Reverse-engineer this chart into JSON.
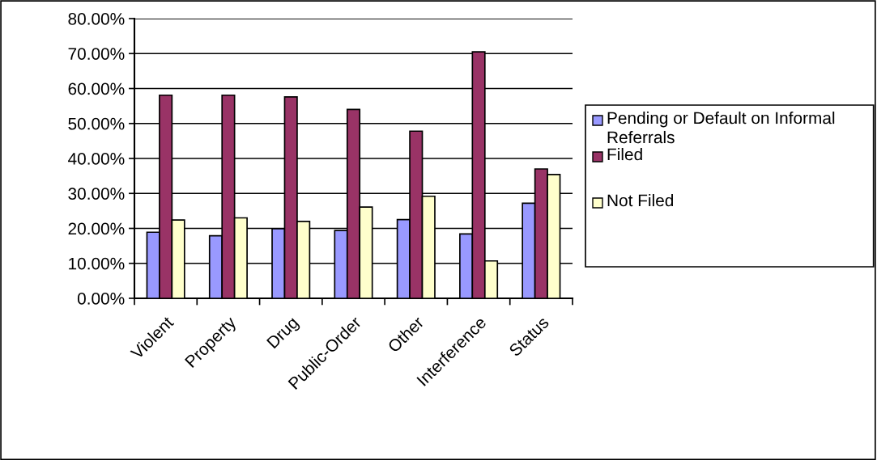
{
  "chart_data": {
    "type": "bar",
    "categories": [
      "Violent",
      "Property",
      "Drug",
      "Public-Order",
      "Other",
      "Interference",
      "Status"
    ],
    "series": [
      {
        "name": "Pending or Default on Informal Referrals",
        "color": "#9999ff",
        "values": [
          18.9,
          17.9,
          19.9,
          19.4,
          22.5,
          18.4,
          27.2
        ]
      },
      {
        "name": "Filed",
        "color": "#993366",
        "values": [
          58.1,
          58.1,
          57.6,
          54.0,
          47.8,
          70.5,
          37.0
        ]
      },
      {
        "name": "Not Filed",
        "color": "#ffffcc",
        "values": [
          22.4,
          23.0,
          22.0,
          26.1,
          29.2,
          10.7,
          35.4
        ]
      }
    ],
    "ylim": [
      0,
      80
    ],
    "yticks": [
      {
        "value": 0,
        "label": "0.00%"
      },
      {
        "value": 10,
        "label": "10.00%"
      },
      {
        "value": 20,
        "label": "20.00%"
      },
      {
        "value": 30,
        "label": "30.00%"
      },
      {
        "value": 40,
        "label": "40.00%"
      },
      {
        "value": 50,
        "label": "50.00%"
      },
      {
        "value": 60,
        "label": "60.00%"
      },
      {
        "value": 70,
        "label": "70.00%"
      },
      {
        "value": 80,
        "label": "80.00%"
      }
    ],
    "grid": "y",
    "legend": "right"
  }
}
